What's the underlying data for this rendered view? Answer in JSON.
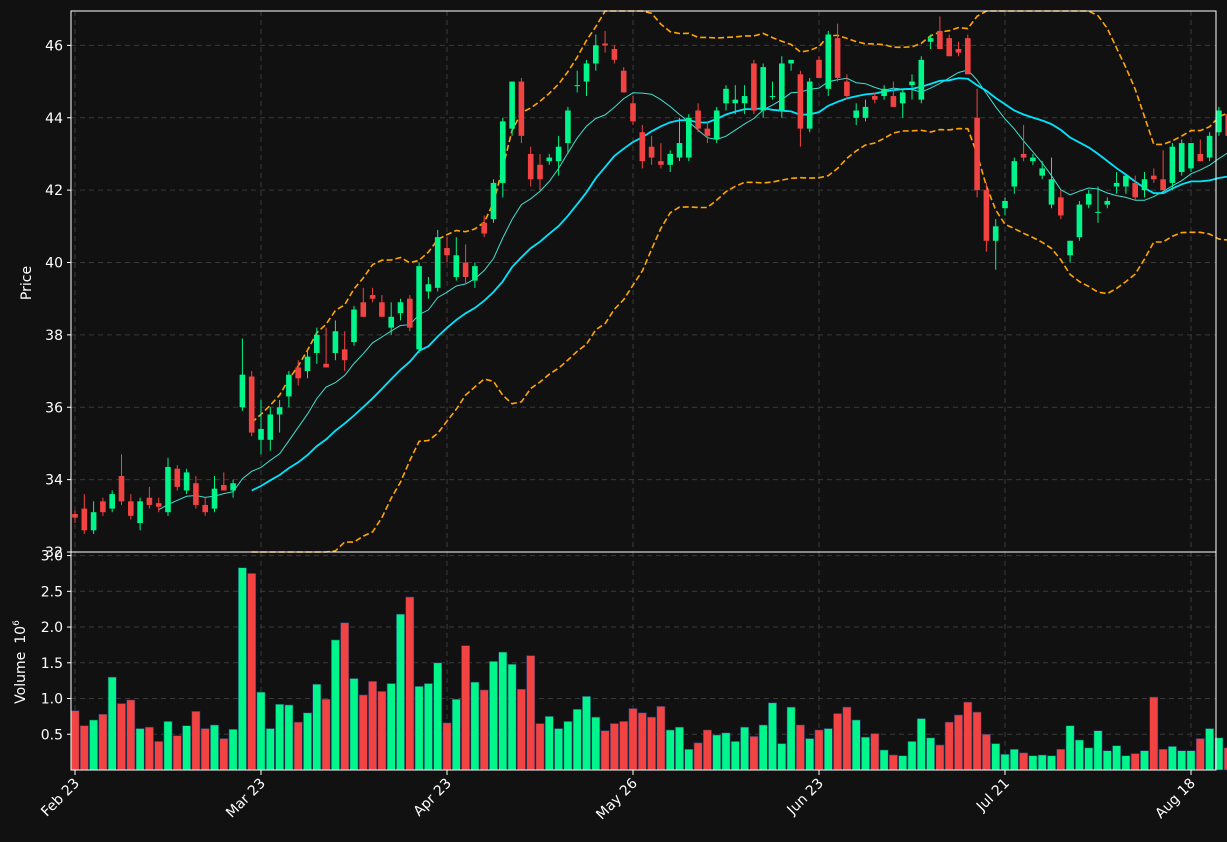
{
  "chart_data": {
    "type": "candlestick",
    "title": "",
    "colors": {
      "background": "#111111",
      "up": "#00f58a",
      "down": "#f24343",
      "grid": "#3a3a3a",
      "axis": "#ffffff",
      "ma_fast": "#40e0d0",
      "ma_slow": "#00e5ff",
      "bands": "#ffa500"
    },
    "price_panel": {
      "ylabel": "Price",
      "ylim": [
        32,
        46.95
      ],
      "yticks": [
        32,
        34,
        36,
        38,
        40,
        42,
        44,
        46
      ],
      "grid": true
    },
    "volume_panel": {
      "ylabel": "Volume",
      "ylabel_exp": "10",
      "ylabel_pow": "6",
      "ylim": [
        0,
        3.05
      ],
      "yticks": [
        "0.5",
        "1.0",
        "1.5",
        "2.0",
        "2.5",
        "3.0"
      ],
      "ytick_values": [
        0.5,
        1.0,
        1.5,
        2.0,
        2.5,
        3.0
      ],
      "grid": true
    },
    "x_ticks": [
      {
        "label": "Feb 23",
        "index": 0
      },
      {
        "label": "Mar 23",
        "index": 20
      },
      {
        "label": "Apr 23",
        "index": 40
      },
      {
        "label": "May 26",
        "index": 60
      },
      {
        "label": "Jun 23",
        "index": 80
      },
      {
        "label": "Jul 21",
        "index": 100
      },
      {
        "label": "Aug 18",
        "index": 120
      }
    ],
    "candles": [
      [
        33.05,
        33.15,
        32.8,
        32.95,
        0.83
      ],
      [
        33.2,
        33.6,
        32.5,
        32.6,
        0.62
      ],
      [
        32.6,
        33.4,
        32.5,
        33.1,
        0.7
      ],
      [
        33.4,
        33.5,
        33.0,
        33.1,
        0.78
      ],
      [
        33.2,
        33.7,
        33.1,
        33.6,
        1.3
      ],
      [
        34.1,
        34.7,
        33.3,
        33.4,
        0.93
      ],
      [
        33.4,
        33.6,
        32.9,
        33.0,
        0.98
      ],
      [
        32.8,
        33.5,
        32.6,
        33.4,
        0.58
      ],
      [
        33.5,
        33.8,
        33.2,
        33.3,
        0.6
      ],
      [
        33.35,
        33.5,
        33.1,
        33.25,
        0.4
      ],
      [
        33.1,
        34.6,
        33.0,
        34.35,
        0.68
      ],
      [
        34.3,
        34.4,
        33.7,
        33.8,
        0.48
      ],
      [
        33.7,
        34.3,
        33.6,
        34.2,
        0.62
      ],
      [
        33.9,
        34.1,
        33.2,
        33.3,
        0.82
      ],
      [
        33.3,
        33.5,
        33.0,
        33.1,
        0.58
      ],
      [
        33.2,
        34.1,
        33.1,
        33.75,
        0.63
      ],
      [
        33.85,
        34.2,
        33.7,
        33.7,
        0.44
      ],
      [
        33.7,
        34.0,
        33.5,
        33.9,
        0.57
      ],
      [
        36.0,
        37.9,
        35.9,
        36.9,
        2.83
      ],
      [
        36.85,
        37.0,
        35.2,
        35.3,
        2.75
      ],
      [
        35.1,
        36.2,
        34.7,
        35.4,
        1.09
      ],
      [
        35.1,
        36.0,
        34.8,
        35.8,
        0.58
      ],
      [
        35.8,
        36.2,
        35.3,
        36.0,
        0.92
      ],
      [
        36.3,
        37.0,
        36.0,
        36.9,
        0.91
      ],
      [
        37.1,
        37.3,
        36.6,
        36.8,
        0.67
      ],
      [
        37.0,
        37.6,
        36.8,
        37.4,
        0.8
      ],
      [
        37.5,
        38.2,
        37.2,
        38.0,
        1.2
      ],
      [
        37.2,
        38.2,
        37.1,
        37.1,
        0.99
      ],
      [
        37.5,
        38.4,
        37.3,
        38.1,
        1.82
      ],
      [
        37.6,
        38.1,
        37.0,
        37.3,
        2.06
      ],
      [
        37.8,
        38.8,
        37.7,
        38.7,
        1.28
      ],
      [
        38.9,
        39.3,
        38.5,
        38.5,
        1.05
      ],
      [
        39.1,
        39.3,
        38.9,
        39.0,
        1.24
      ],
      [
        38.9,
        39.1,
        38.5,
        38.5,
        1.1
      ],
      [
        38.2,
        38.9,
        38.0,
        38.5,
        1.21
      ],
      [
        38.6,
        39.0,
        38.4,
        38.9,
        2.18
      ],
      [
        39.0,
        39.1,
        38.1,
        38.2,
        2.42
      ],
      [
        37.6,
        40.0,
        37.5,
        39.9,
        1.17
      ],
      [
        39.2,
        39.6,
        39.0,
        39.4,
        1.21
      ],
      [
        39.3,
        40.9,
        39.2,
        40.7,
        1.5
      ],
      [
        40.4,
        40.7,
        40.0,
        40.2,
        0.66
      ],
      [
        39.6,
        40.7,
        39.5,
        40.2,
        0.99
      ],
      [
        40.0,
        40.5,
        39.4,
        39.6,
        1.74
      ],
      [
        39.5,
        40.0,
        39.3,
        39.9,
        1.23
      ],
      [
        41.1,
        41.3,
        40.7,
        40.8,
        1.12
      ],
      [
        41.2,
        42.3,
        41.1,
        42.2,
        1.52
      ],
      [
        42.2,
        44.0,
        41.8,
        43.9,
        1.65
      ],
      [
        43.7,
        45.0,
        43.5,
        45.0,
        1.48
      ],
      [
        45.0,
        45.1,
        43.3,
        43.5,
        1.13
      ],
      [
        43.0,
        43.2,
        42.1,
        42.3,
        1.6
      ],
      [
        42.7,
        43.0,
        42.0,
        42.3,
        0.65
      ],
      [
        42.8,
        43.0,
        42.7,
        42.9,
        0.75
      ],
      [
        42.8,
        43.5,
        42.4,
        43.2,
        0.58
      ],
      [
        43.3,
        44.3,
        43.0,
        44.2,
        0.68
      ],
      [
        44.9,
        45.3,
        44.7,
        44.9,
        0.85
      ],
      [
        45.0,
        45.6,
        44.6,
        45.5,
        1.03
      ],
      [
        45.5,
        46.3,
        45.3,
        46.0,
        0.74
      ],
      [
        46.05,
        46.4,
        45.8,
        46.0,
        0.55
      ],
      [
        45.9,
        46.0,
        45.5,
        45.6,
        0.65
      ],
      [
        45.3,
        45.4,
        44.7,
        44.7,
        0.68
      ],
      [
        44.4,
        44.6,
        43.8,
        43.9,
        0.86
      ],
      [
        43.6,
        43.8,
        42.6,
        42.8,
        0.8
      ],
      [
        43.2,
        43.5,
        42.7,
        42.9,
        0.74
      ],
      [
        42.8,
        43.3,
        42.6,
        42.7,
        0.89
      ],
      [
        42.7,
        43.1,
        42.5,
        43.0,
        0.56
      ],
      [
        42.9,
        44.0,
        42.8,
        43.3,
        0.6
      ],
      [
        42.9,
        44.1,
        42.8,
        44.0,
        0.29
      ],
      [
        44.2,
        44.4,
        43.6,
        43.7,
        0.38
      ],
      [
        43.7,
        43.9,
        43.3,
        43.5,
        0.56
      ],
      [
        43.4,
        44.3,
        43.3,
        44.2,
        0.49
      ],
      [
        44.4,
        44.9,
        44.2,
        44.8,
        0.52
      ],
      [
        44.4,
        44.9,
        44.1,
        44.5,
        0.4
      ],
      [
        44.4,
        44.9,
        44.1,
        44.6,
        0.6
      ],
      [
        45.5,
        45.6,
        44.1,
        44.2,
        0.47
      ],
      [
        44.2,
        45.5,
        44.0,
        45.4,
        0.63
      ],
      [
        44.6,
        45.0,
        44.5,
        44.6,
        0.94
      ],
      [
        44.2,
        45.7,
        44.0,
        45.5,
        0.37
      ],
      [
        45.5,
        45.6,
        45.3,
        45.6,
        0.88
      ],
      [
        45.2,
        45.3,
        43.2,
        43.7,
        0.63
      ],
      [
        43.7,
        45.1,
        43.6,
        45.0,
        0.44
      ],
      [
        45.6,
        45.7,
        45.1,
        45.1,
        0.56
      ],
      [
        44.8,
        46.4,
        44.6,
        46.3,
        0.58
      ],
      [
        46.2,
        46.6,
        45.0,
        45.1,
        0.79
      ],
      [
        45.0,
        45.2,
        44.5,
        44.6,
        0.88
      ],
      [
        44.0,
        44.4,
        43.8,
        44.2,
        0.7
      ],
      [
        44.0,
        44.5,
        43.9,
        44.3,
        0.46
      ],
      [
        44.6,
        44.7,
        44.4,
        44.5,
        0.51
      ],
      [
        44.6,
        44.9,
        44.5,
        44.8,
        0.28
      ],
      [
        44.6,
        45.0,
        44.4,
        44.3,
        0.21
      ],
      [
        44.4,
        44.8,
        44.0,
        44.7,
        0.2
      ],
      [
        44.9,
        45.2,
        44.5,
        45.0,
        0.4
      ],
      [
        44.5,
        45.7,
        44.4,
        45.6,
        0.72
      ],
      [
        46.1,
        46.3,
        45.9,
        46.2,
        0.45
      ],
      [
        46.4,
        46.8,
        45.9,
        45.9,
        0.35
      ],
      [
        46.2,
        46.3,
        45.7,
        45.7,
        0.67
      ],
      [
        45.9,
        46.1,
        45.7,
        45.8,
        0.77
      ],
      [
        46.2,
        46.3,
        45.2,
        45.2,
        0.95
      ],
      [
        44.0,
        44.8,
        41.8,
        42.0,
        0.81
      ],
      [
        42.0,
        42.2,
        40.3,
        40.6,
        0.5
      ],
      [
        40.6,
        41.2,
        39.8,
        41.0,
        0.37
      ],
      [
        41.5,
        41.8,
        41.3,
        41.7,
        0.22
      ],
      [
        42.1,
        42.9,
        41.9,
        42.8,
        0.29
      ],
      [
        43.0,
        43.8,
        42.8,
        42.9,
        0.24
      ],
      [
        42.8,
        43.0,
        42.7,
        42.9,
        0.2
      ],
      [
        42.4,
        42.8,
        42.3,
        42.6,
        0.21
      ],
      [
        41.6,
        42.9,
        41.5,
        42.3,
        0.2
      ],
      [
        41.8,
        42.0,
        41.2,
        41.3,
        0.29
      ],
      [
        40.2,
        40.6,
        40.0,
        40.6,
        0.62
      ],
      [
        40.7,
        41.7,
        40.6,
        41.6,
        0.42
      ],
      [
        41.6,
        42.0,
        41.5,
        41.9,
        0.31
      ],
      [
        41.4,
        42.1,
        41.1,
        41.4,
        0.55
      ],
      [
        41.6,
        41.8,
        41.5,
        41.7,
        0.27
      ],
      [
        42.1,
        42.5,
        41.9,
        42.2,
        0.34
      ],
      [
        42.1,
        42.4,
        41.9,
        42.4,
        0.2
      ],
      [
        42.2,
        42.4,
        41.7,
        41.8,
        0.23
      ],
      [
        42.0,
        42.5,
        41.8,
        42.3,
        0.27
      ],
      [
        42.4,
        42.6,
        42.2,
        42.3,
        1.02
      ],
      [
        42.3,
        43.1,
        42.0,
        42.0,
        0.29
      ],
      [
        42.2,
        43.3,
        42.0,
        43.2,
        0.33
      ],
      [
        42.5,
        43.4,
        42.4,
        43.3,
        0.27
      ],
      [
        42.6,
        43.3,
        42.5,
        43.3,
        0.27
      ],
      [
        43.0,
        43.4,
        42.8,
        42.8,
        0.44
      ],
      [
        42.9,
        43.6,
        42.8,
        43.5,
        0.58
      ],
      [
        43.6,
        44.3,
        43.5,
        44.2,
        0.45
      ],
      [
        44.1,
        44.3,
        43.5,
        43.5,
        0.31
      ]
    ]
  }
}
